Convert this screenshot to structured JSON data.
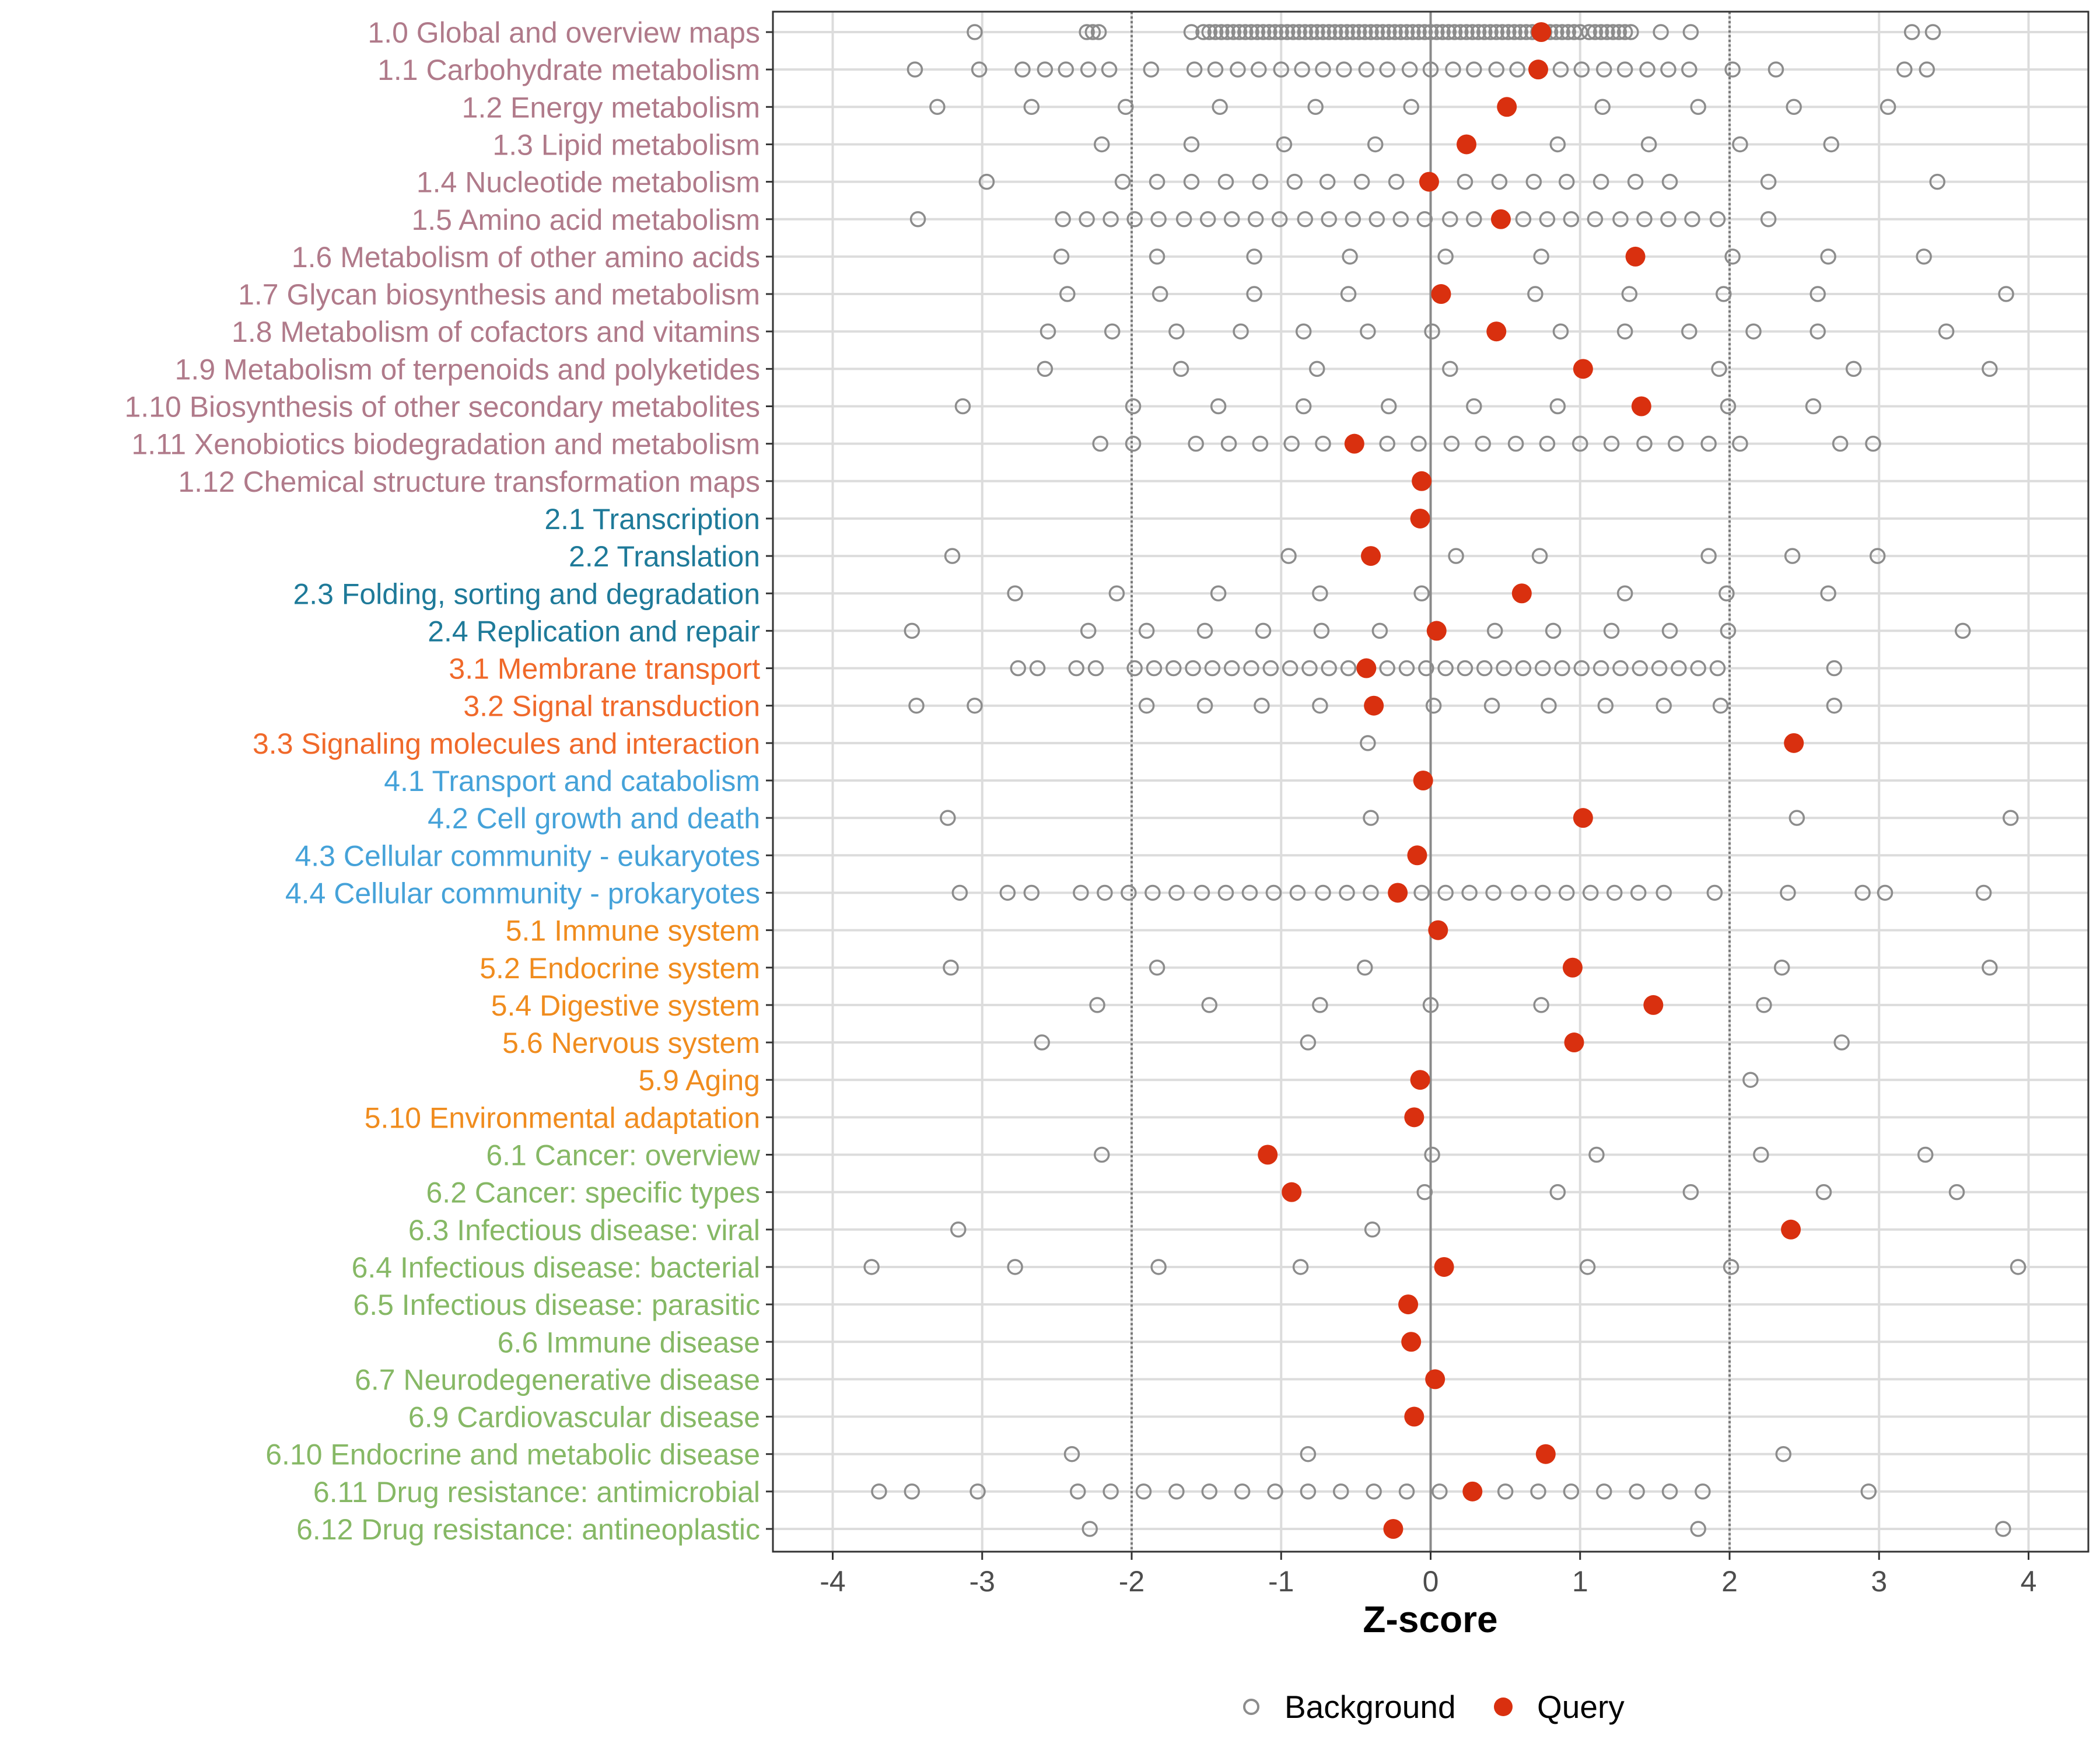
{
  "chart_data": {
    "type": "scatter",
    "xlabel": "Z-score",
    "ylabel": "",
    "xlim": [
      -4.4,
      4.4
    ],
    "x_ticks": [
      -4,
      -3,
      -2,
      -1,
      0,
      1,
      2,
      3,
      4
    ],
    "x_tick_labels": [
      "-4",
      "-3",
      "-2",
      "-1",
      "0",
      "1",
      "2",
      "3",
      "4"
    ],
    "reference_lines": [
      {
        "x": -2,
        "style": "dotted"
      },
      {
        "x": 0,
        "style": "solid"
      },
      {
        "x": 2,
        "style": "dotted"
      }
    ],
    "grid": true,
    "legend": {
      "position": "bottom",
      "entries": [
        {
          "label": "Background",
          "marker": "open-circle",
          "color": "#8c8c8c"
        },
        {
          "label": "Query",
          "marker": "filled-circle",
          "color": "#d9300f"
        }
      ]
    },
    "group_colors": {
      "1": "#b07a8a",
      "2": "#1e7a99",
      "3": "#f0692a",
      "4": "#45a2d9",
      "5": "#f08c1e",
      "6": "#86b865"
    },
    "categories": [
      {
        "label": "1.0 Global and overview maps",
        "group": "1",
        "query": 0.74,
        "background": [
          -3.05,
          -2.3,
          -2.26,
          -2.22,
          -1.6,
          -1.52,
          -1.48,
          -1.44,
          -1.4,
          -1.36,
          -1.32,
          -1.28,
          -1.24,
          -1.2,
          -1.16,
          -1.12,
          -1.08,
          -1.04,
          -1.0,
          -0.96,
          -0.92,
          -0.88,
          -0.84,
          -0.8,
          -0.76,
          -0.72,
          -0.68,
          -0.64,
          -0.6,
          -0.56,
          -0.52,
          -0.48,
          -0.44,
          -0.4,
          -0.36,
          -0.32,
          -0.28,
          -0.24,
          -0.2,
          -0.16,
          -0.12,
          -0.08,
          -0.04,
          0.0,
          0.04,
          0.08,
          0.12,
          0.16,
          0.2,
          0.24,
          0.28,
          0.32,
          0.36,
          0.4,
          0.44,
          0.48,
          0.52,
          0.56,
          0.6,
          0.64,
          0.68,
          0.72,
          0.76,
          0.8,
          0.84,
          0.88,
          0.92,
          0.96,
          1.0,
          1.06,
          1.1,
          1.14,
          1.18,
          1.22,
          1.26,
          1.3,
          1.34,
          1.54,
          1.74,
          3.22,
          3.36
        ]
      },
      {
        "label": "1.1 Carbohydrate metabolism",
        "group": "1",
        "query": 0.72,
        "background": [
          -3.45,
          -3.02,
          -2.73,
          -2.58,
          -2.44,
          -2.29,
          -2.15,
          -1.87,
          -1.58,
          -1.44,
          -1.29,
          -1.15,
          -1.0,
          -0.86,
          -0.72,
          -0.58,
          -0.43,
          -0.29,
          -0.14,
          0.0,
          0.15,
          0.29,
          0.44,
          0.58,
          0.73,
          0.87,
          1.01,
          1.16,
          1.3,
          1.45,
          1.59,
          1.73,
          2.02,
          2.31,
          3.17,
          3.32
        ]
      },
      {
        "label": "1.2 Energy metabolism",
        "group": "1",
        "query": 0.51,
        "background": [
          -3.3,
          -2.67,
          -2.04,
          -1.41,
          -0.77,
          -0.13,
          1.15,
          1.79,
          2.43,
          3.06
        ]
      },
      {
        "label": "1.3 Lipid metabolism",
        "group": "1",
        "query": 0.24,
        "background": [
          -2.2,
          -1.6,
          -0.98,
          -0.37,
          0.85,
          1.46,
          2.07,
          2.68
        ]
      },
      {
        "label": "1.4 Nucleotide metabolism",
        "group": "1",
        "query": -0.01,
        "background": [
          -2.97,
          -2.06,
          -1.83,
          -1.6,
          -1.37,
          -1.14,
          -0.91,
          -0.69,
          -0.46,
          -0.23,
          0.23,
          0.46,
          0.69,
          0.91,
          1.14,
          1.37,
          1.6,
          2.26,
          3.39
        ]
      },
      {
        "label": "1.5 Amino acid metabolism",
        "group": "1",
        "query": 0.47,
        "background": [
          -3.43,
          -2.46,
          -2.3,
          -2.14,
          -1.98,
          -1.82,
          -1.65,
          -1.49,
          -1.33,
          -1.17,
          -1.01,
          -0.84,
          -0.68,
          -0.52,
          -0.36,
          -0.2,
          -0.04,
          0.13,
          0.29,
          0.62,
          0.78,
          0.94,
          1.1,
          1.27,
          1.43,
          1.59,
          1.75,
          1.92,
          2.26
        ]
      },
      {
        "label": "1.6 Metabolism of other amino acids",
        "group": "1",
        "query": 1.37,
        "background": [
          -2.47,
          -1.83,
          -1.18,
          -0.54,
          0.1,
          0.74,
          2.02,
          2.66,
          3.3
        ]
      },
      {
        "label": "1.7 Glycan biosynthesis and metabolism",
        "group": "1",
        "query": 0.07,
        "background": [
          -2.43,
          -1.81,
          -1.18,
          -0.55,
          0.7,
          1.33,
          1.96,
          2.59,
          3.85
        ]
      },
      {
        "label": "1.8 Metabolism of cofactors and vitamins",
        "group": "1",
        "query": 0.44,
        "background": [
          -2.56,
          -2.13,
          -1.7,
          -1.27,
          -0.85,
          -0.42,
          0.01,
          0.87,
          1.3,
          1.73,
          2.16,
          2.59,
          3.45
        ]
      },
      {
        "label": "1.9 Metabolism of terpenoids and polyketides",
        "group": "1",
        "query": 1.02,
        "background": [
          -2.58,
          -1.67,
          -0.76,
          0.13,
          1.93,
          2.83,
          3.74
        ]
      },
      {
        "label": "1.10 Biosynthesis of other secondary metabolites",
        "group": "1",
        "query": 1.41,
        "background": [
          -3.13,
          -1.99,
          -1.42,
          -0.85,
          -0.28,
          0.29,
          0.85,
          1.99,
          2.56
        ]
      },
      {
        "label": "1.11 Xenobiotics biodegradation and metabolism",
        "group": "1",
        "query": -0.51,
        "background": [
          -2.21,
          -1.99,
          -1.57,
          -1.35,
          -1.14,
          -0.93,
          -0.72,
          -0.29,
          -0.08,
          0.14,
          0.35,
          0.57,
          0.78,
          1.0,
          1.21,
          1.43,
          1.64,
          1.86,
          2.07,
          2.74,
          2.96
        ]
      },
      {
        "label": "1.12 Chemical structure transformation maps",
        "group": "1",
        "query": -0.06,
        "background": []
      },
      {
        "label": "2.1 Transcription",
        "group": "2",
        "query": -0.07,
        "background": []
      },
      {
        "label": "2.2 Translation",
        "group": "2",
        "query": -0.4,
        "background": [
          -3.2,
          -0.95,
          0.17,
          0.73,
          1.86,
          2.42,
          2.99
        ]
      },
      {
        "label": "2.3 Folding, sorting and degradation",
        "group": "2",
        "query": 0.61,
        "background": [
          -2.78,
          -2.1,
          -1.42,
          -0.74,
          -0.06,
          1.3,
          1.98,
          2.66
        ]
      },
      {
        "label": "2.4 Replication and repair",
        "group": "2",
        "query": 0.04,
        "background": [
          -3.47,
          -2.29,
          -1.9,
          -1.51,
          -1.12,
          -0.73,
          -0.34,
          0.43,
          0.82,
          1.21,
          1.6,
          1.99,
          3.56
        ]
      },
      {
        "label": "3.1 Membrane transport",
        "group": "3",
        "query": -0.43,
        "background": [
          -2.76,
          -2.63,
          -2.37,
          -2.24,
          -1.98,
          -1.85,
          -1.72,
          -1.59,
          -1.46,
          -1.33,
          -1.2,
          -1.07,
          -0.94,
          -0.81,
          -0.68,
          -0.55,
          -0.29,
          -0.16,
          -0.03,
          0.1,
          0.23,
          0.36,
          0.49,
          0.62,
          0.75,
          0.88,
          1.01,
          1.14,
          1.27,
          1.4,
          1.53,
          1.66,
          1.79,
          1.92,
          2.7
        ]
      },
      {
        "label": "3.2 Signal transduction",
        "group": "3",
        "query": -0.38,
        "background": [
          -3.44,
          -3.05,
          -1.9,
          -1.51,
          -1.13,
          -0.74,
          0.02,
          0.41,
          0.79,
          1.17,
          1.56,
          1.94,
          2.7
        ]
      },
      {
        "label": "3.3 Signaling molecules and interaction",
        "group": "3",
        "query": 2.43,
        "background": [
          -0.42
        ]
      },
      {
        "label": "4.1 Transport and catabolism",
        "group": "4",
        "query": -0.05,
        "background": []
      },
      {
        "label": "4.2 Cell growth and death",
        "group": "4",
        "query": 1.02,
        "background": [
          -3.23,
          -0.4,
          2.45,
          3.88
        ]
      },
      {
        "label": "4.3 Cellular community - eukaryotes",
        "group": "4",
        "query": -0.09,
        "background": []
      },
      {
        "label": "4.4 Cellular community - prokaryotes",
        "group": "4",
        "query": -0.22,
        "background": [
          -3.15,
          -2.83,
          -2.67,
          -2.34,
          -2.18,
          -2.02,
          -1.86,
          -1.7,
          -1.53,
          -1.37,
          -1.21,
          -1.05,
          -0.89,
          -0.72,
          -0.56,
          -0.4,
          -0.06,
          0.1,
          0.26,
          0.42,
          0.59,
          0.75,
          0.91,
          1.07,
          1.23,
          1.39,
          1.56,
          1.9,
          2.39,
          2.89,
          3.04,
          3.7
        ]
      },
      {
        "label": "5.1 Immune system",
        "group": "5",
        "query": 0.05,
        "background": []
      },
      {
        "label": "5.2 Endocrine system",
        "group": "5",
        "query": 0.95,
        "background": [
          -3.21,
          -1.83,
          -0.44,
          2.35,
          3.74
        ]
      },
      {
        "label": "5.4 Digestive system",
        "group": "5",
        "query": 1.49,
        "background": [
          -2.23,
          -1.48,
          -0.74,
          0.0,
          0.74,
          2.23
        ]
      },
      {
        "label": "5.6 Nervous system",
        "group": "5",
        "query": 0.96,
        "background": [
          -2.6,
          -0.82,
          2.75
        ]
      },
      {
        "label": "5.9 Aging",
        "group": "5",
        "query": -0.07,
        "background": [
          2.14
        ]
      },
      {
        "label": "5.10 Environmental adaptation",
        "group": "5",
        "query": -0.11,
        "background": []
      },
      {
        "label": "6.1 Cancer: overview",
        "group": "6",
        "query": -1.09,
        "background": [
          -2.2,
          0.01,
          1.11,
          2.21,
          3.31
        ]
      },
      {
        "label": "6.2 Cancer: specific types",
        "group": "6",
        "query": -0.93,
        "background": [
          -0.04,
          0.85,
          1.74,
          2.63,
          3.52
        ]
      },
      {
        "label": "6.3 Infectious disease: viral",
        "group": "6",
        "query": 2.41,
        "background": [
          -3.16,
          -0.39
        ]
      },
      {
        "label": "6.4 Infectious disease: bacterial",
        "group": "6",
        "query": 0.09,
        "background": [
          -3.74,
          -2.78,
          -1.82,
          -0.87,
          1.05,
          2.01,
          3.93
        ]
      },
      {
        "label": "6.5 Infectious disease: parasitic",
        "group": "6",
        "query": -0.15,
        "background": []
      },
      {
        "label": "6.6 Immune disease",
        "group": "6",
        "query": -0.13,
        "background": []
      },
      {
        "label": "6.7 Neurodegenerative disease",
        "group": "6",
        "query": 0.03,
        "background": []
      },
      {
        "label": "6.9 Cardiovascular disease",
        "group": "6",
        "query": -0.11,
        "background": []
      },
      {
        "label": "6.10 Endocrine and metabolic disease",
        "group": "6",
        "query": 0.77,
        "background": [
          -2.4,
          -0.82,
          2.36
        ]
      },
      {
        "label": "6.11 Drug resistance: antimicrobial",
        "group": "6",
        "query": 0.28,
        "background": [
          -3.69,
          -3.47,
          -3.03,
          -2.36,
          -2.14,
          -1.92,
          -1.7,
          -1.48,
          -1.26,
          -1.04,
          -0.82,
          -0.6,
          -0.38,
          -0.16,
          0.06,
          0.5,
          0.72,
          0.94,
          1.16,
          1.38,
          1.6,
          1.82,
          2.93
        ]
      },
      {
        "label": "6.12 Drug resistance: antineoplastic",
        "group": "6",
        "query": -0.25,
        "background": [
          -2.28,
          1.79,
          3.83
        ]
      }
    ]
  }
}
